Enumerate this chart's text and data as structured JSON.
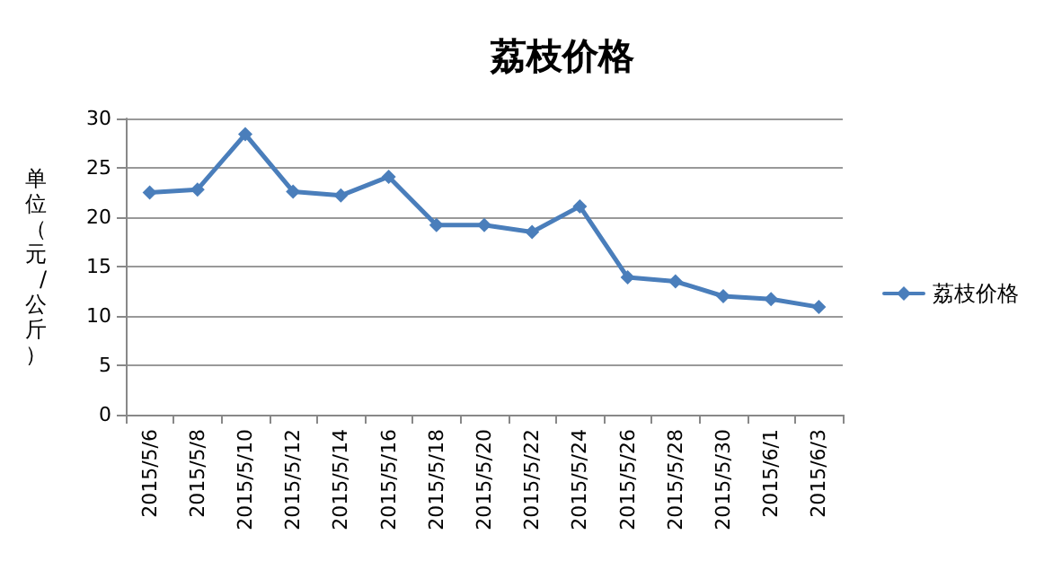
{
  "chart_data": {
    "type": "line",
    "title": "荔枝价格",
    "ylabel": "单位（元/公斤）",
    "categories": [
      "2015/5/6",
      "2015/5/8",
      "2015/5/10",
      "2015/5/12",
      "2015/5/14",
      "2015/5/16",
      "2015/5/18",
      "2015/5/20",
      "2015/5/22",
      "2015/5/24",
      "2015/5/26",
      "2015/5/28",
      "2015/5/30",
      "2015/6/1",
      "2015/6/3"
    ],
    "series": [
      {
        "name": "荔枝价格",
        "color": "#4a7ebb",
        "values": [
          22.5,
          22.8,
          28.4,
          22.6,
          22.2,
          24.1,
          19.2,
          19.2,
          18.5,
          21.1,
          13.9,
          13.5,
          12.0,
          11.7,
          10.9
        ]
      }
    ],
    "ylim": [
      0,
      30
    ],
    "yticks": [
      0,
      5,
      10,
      15,
      20,
      25,
      30
    ],
    "grid": "y",
    "legend": "right",
    "marker": "diamond",
    "line_style": "solid"
  }
}
